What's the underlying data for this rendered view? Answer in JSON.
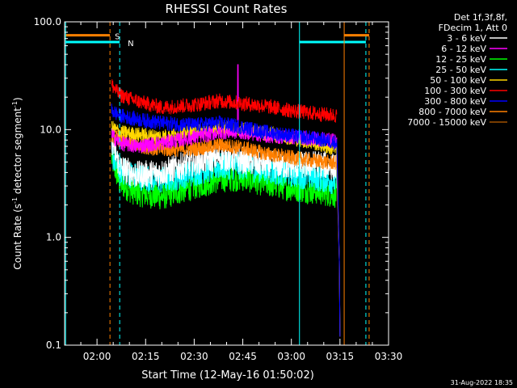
{
  "chart_data": {
    "type": "line",
    "title": "RHESSI Count Rates",
    "xlabel": "Start Time (12-May-16 01:50:02)",
    "ylabel_prefix": "Count Rate (s",
    "ylabel_sup1": "-1",
    "ylabel_mid": " detector segment",
    "ylabel_sup2": "-1",
    "ylabel_suffix": ")",
    "yscale": "log",
    "ylim": [
      0.1,
      100.0
    ],
    "xlim_minutes": [
      0,
      100
    ],
    "x_tick_labels": [
      "02:00",
      "02:15",
      "02:30",
      "02:45",
      "03:00",
      "03:15",
      "03:30"
    ],
    "x_tick_minutes": [
      10,
      25,
      40,
      55,
      70,
      85,
      100
    ],
    "y_tick_labels": [
      "0.1",
      "1.0",
      "10.0",
      "100.0"
    ],
    "y_tick_values": [
      0.1,
      1,
      10,
      100
    ],
    "grid": false,
    "legend_header": [
      "Det 1f,3f,8f,",
      "FDecim 1, Att 0"
    ],
    "legend_placement": "top-right outside",
    "series": [
      {
        "name": "3 - 6 keV",
        "color": "#ffffff",
        "base": [
          [
            14.5,
            8.0
          ],
          [
            17,
            4.5
          ],
          [
            22,
            3.8
          ],
          [
            30,
            4.0
          ],
          [
            40,
            5.0
          ],
          [
            48,
            5.6
          ],
          [
            55,
            5.2
          ],
          [
            62,
            4.8
          ],
          [
            70,
            4.6
          ],
          [
            78,
            4.8
          ],
          [
            84,
            4.5
          ]
        ]
      },
      {
        "name": "6 - 12 keV",
        "color": "#ff00ff",
        "base": [
          [
            14.5,
            9.0
          ],
          [
            17,
            7.5
          ],
          [
            22,
            7.0
          ],
          [
            30,
            7.5
          ],
          [
            40,
            8.5
          ],
          [
            48,
            9.5
          ],
          [
            55,
            9.5
          ],
          [
            62,
            8.8
          ],
          [
            70,
            8.5
          ],
          [
            78,
            8.2
          ],
          [
            84,
            7.8
          ]
        ]
      },
      {
        "name": "12 - 25 keV",
        "color": "#00ff00",
        "base": [
          [
            14.5,
            5.5
          ],
          [
            17,
            3.2
          ],
          [
            22,
            2.6
          ],
          [
            30,
            2.4
          ],
          [
            40,
            3.0
          ],
          [
            48,
            3.5
          ],
          [
            55,
            3.6
          ],
          [
            62,
            3.2
          ],
          [
            70,
            2.9
          ],
          [
            78,
            2.7
          ],
          [
            84,
            2.5
          ]
        ]
      },
      {
        "name": "25 - 50 keV",
        "color": "#00ffff",
        "base": [
          [
            14.5,
            6.0
          ],
          [
            17,
            4.2
          ],
          [
            22,
            3.7
          ],
          [
            30,
            3.4
          ],
          [
            40,
            4.0
          ],
          [
            48,
            4.6
          ],
          [
            55,
            4.6
          ],
          [
            62,
            4.2
          ],
          [
            70,
            3.9
          ],
          [
            78,
            3.6
          ],
          [
            84,
            3.3
          ]
        ]
      },
      {
        "name": "50 - 100 keV",
        "color": "#ffd700",
        "base": [
          [
            14.5,
            10.5
          ],
          [
            17,
            9.5
          ],
          [
            22,
            9.0
          ],
          [
            30,
            8.6
          ],
          [
            40,
            9.5
          ],
          [
            48,
            10.5
          ],
          [
            55,
            10.0
          ],
          [
            62,
            9.2
          ],
          [
            70,
            8.4
          ],
          [
            78,
            7.4
          ],
          [
            84,
            6.5
          ]
        ]
      },
      {
        "name": "100 - 300 keV",
        "color": "#ff0000",
        "base": [
          [
            14.5,
            26.0
          ],
          [
            17,
            21.0
          ],
          [
            22,
            18.5
          ],
          [
            30,
            16.0
          ],
          [
            40,
            17.0
          ],
          [
            48,
            18.5
          ],
          [
            55,
            17.5
          ],
          [
            62,
            16.5
          ],
          [
            70,
            15.0
          ],
          [
            78,
            14.0
          ],
          [
            84,
            13.5
          ]
        ]
      },
      {
        "name": "300 - 800 keV",
        "color": "#0000ff",
        "base": [
          [
            14.5,
            15.0
          ],
          [
            17,
            13.5
          ],
          [
            22,
            12.5
          ],
          [
            30,
            11.5
          ],
          [
            40,
            11.0
          ],
          [
            48,
            11.5
          ],
          [
            55,
            10.5
          ],
          [
            62,
            9.5
          ],
          [
            70,
            8.8
          ],
          [
            78,
            8.2
          ],
          [
            84,
            7.6
          ]
        ]
      },
      {
        "name": "800 - 7000 keV",
        "color": "#ff8000",
        "base": [
          [
            14.5,
            9.0
          ],
          [
            17,
            8.0
          ],
          [
            22,
            7.2
          ],
          [
            30,
            6.5
          ],
          [
            40,
            6.6
          ],
          [
            48,
            7.2
          ],
          [
            55,
            6.8
          ],
          [
            62,
            6.0
          ],
          [
            70,
            5.5
          ],
          [
            78,
            5.1
          ],
          [
            84,
            4.9
          ]
        ]
      },
      {
        "name": "7000 - 15000 keV",
        "color": "#a05000",
        "base": [
          [
            14.5,
            8.5
          ],
          [
            84,
            5.0
          ]
        ]
      }
    ],
    "events": [
      {
        "name": "spike",
        "series": "6 - 12 keV",
        "x": 53.5,
        "y": 40
      },
      {
        "name": "drop",
        "x": 85.2,
        "y": 0.12
      }
    ],
    "vlines": [
      {
        "x": 14.0,
        "color": "#ff8000",
        "style": "dashed"
      },
      {
        "x": 17.0,
        "color": "#00ffff",
        "style": "dashed"
      },
      {
        "x": 0.3,
        "color": "#00ffff",
        "style": "solid"
      },
      {
        "x": 72.5,
        "color": "#00ffff",
        "style": "solid"
      },
      {
        "x": 86.3,
        "color": "#ff8000",
        "style": "solid"
      },
      {
        "x": 94.0,
        "color": "#ff8000",
        "style": "dashed"
      },
      {
        "x": 93.0,
        "color": "#00ffff",
        "style": "dashed"
      }
    ],
    "flags": [
      {
        "label": "S",
        "color": "#ff8000",
        "y": 75,
        "ranges": [
          [
            0.3,
            14.0
          ],
          [
            86.3,
            94.0
          ]
        ]
      },
      {
        "label": "N",
        "color": "#00ffff",
        "y": 65,
        "ranges": [
          [
            0.3,
            17.0
          ],
          [
            72.5,
            93.0
          ]
        ]
      }
    ]
  },
  "footer_timestamp": "31-Aug-2022 18:35"
}
